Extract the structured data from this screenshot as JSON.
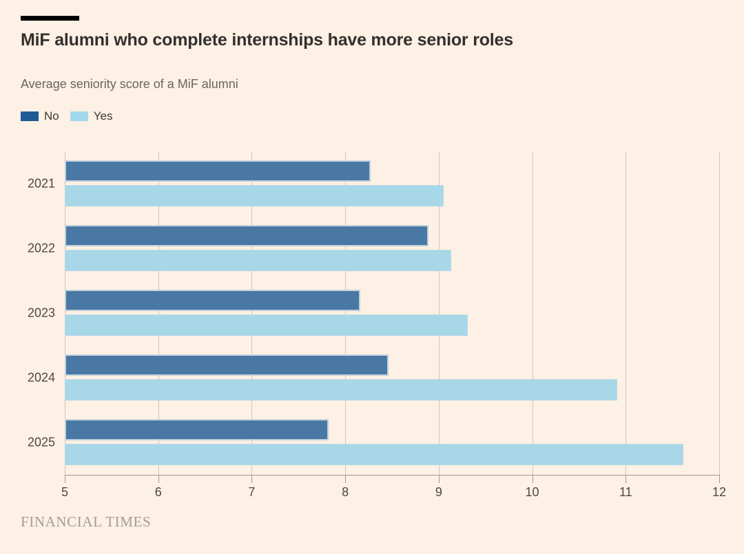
{
  "page": {
    "background_color": "#fdf0e4"
  },
  "header": {
    "title": "MiF alumni who complete internships have more senior roles",
    "subtitle": "Average seniority score of a MiF alumni"
  },
  "legend": {
    "items": [
      {
        "label": "No",
        "color": "#1f5c96"
      },
      {
        "label": "Yes",
        "color": "#a2d8ec"
      }
    ]
  },
  "chart_data": {
    "type": "bar",
    "orientation": "horizontal",
    "title": "MiF alumni who complete internships have more senior roles",
    "subtitle": "Average seniority score of a MiF alumni",
    "categories": [
      "2021",
      "2022",
      "2023",
      "2024",
      "2025"
    ],
    "series": [
      {
        "name": "No",
        "color": "#4a78a4",
        "values": [
          8.27,
          8.89,
          8.16,
          8.46,
          7.82
        ]
      },
      {
        "name": "Yes",
        "color": "#a8d7e8",
        "values": [
          9.05,
          9.13,
          9.31,
          10.91,
          11.62
        ]
      }
    ],
    "xlim": [
      5,
      12
    ],
    "xticks": [
      5,
      6,
      7,
      8,
      9,
      10,
      11,
      12
    ],
    "xlabel": "",
    "ylabel": "",
    "grid": true,
    "gridline_color": "#cfc6bb",
    "axis_color": "#a29a8f",
    "legend_position": "top-left"
  },
  "footer": {
    "brand": "FINANCIAL TIMES"
  }
}
